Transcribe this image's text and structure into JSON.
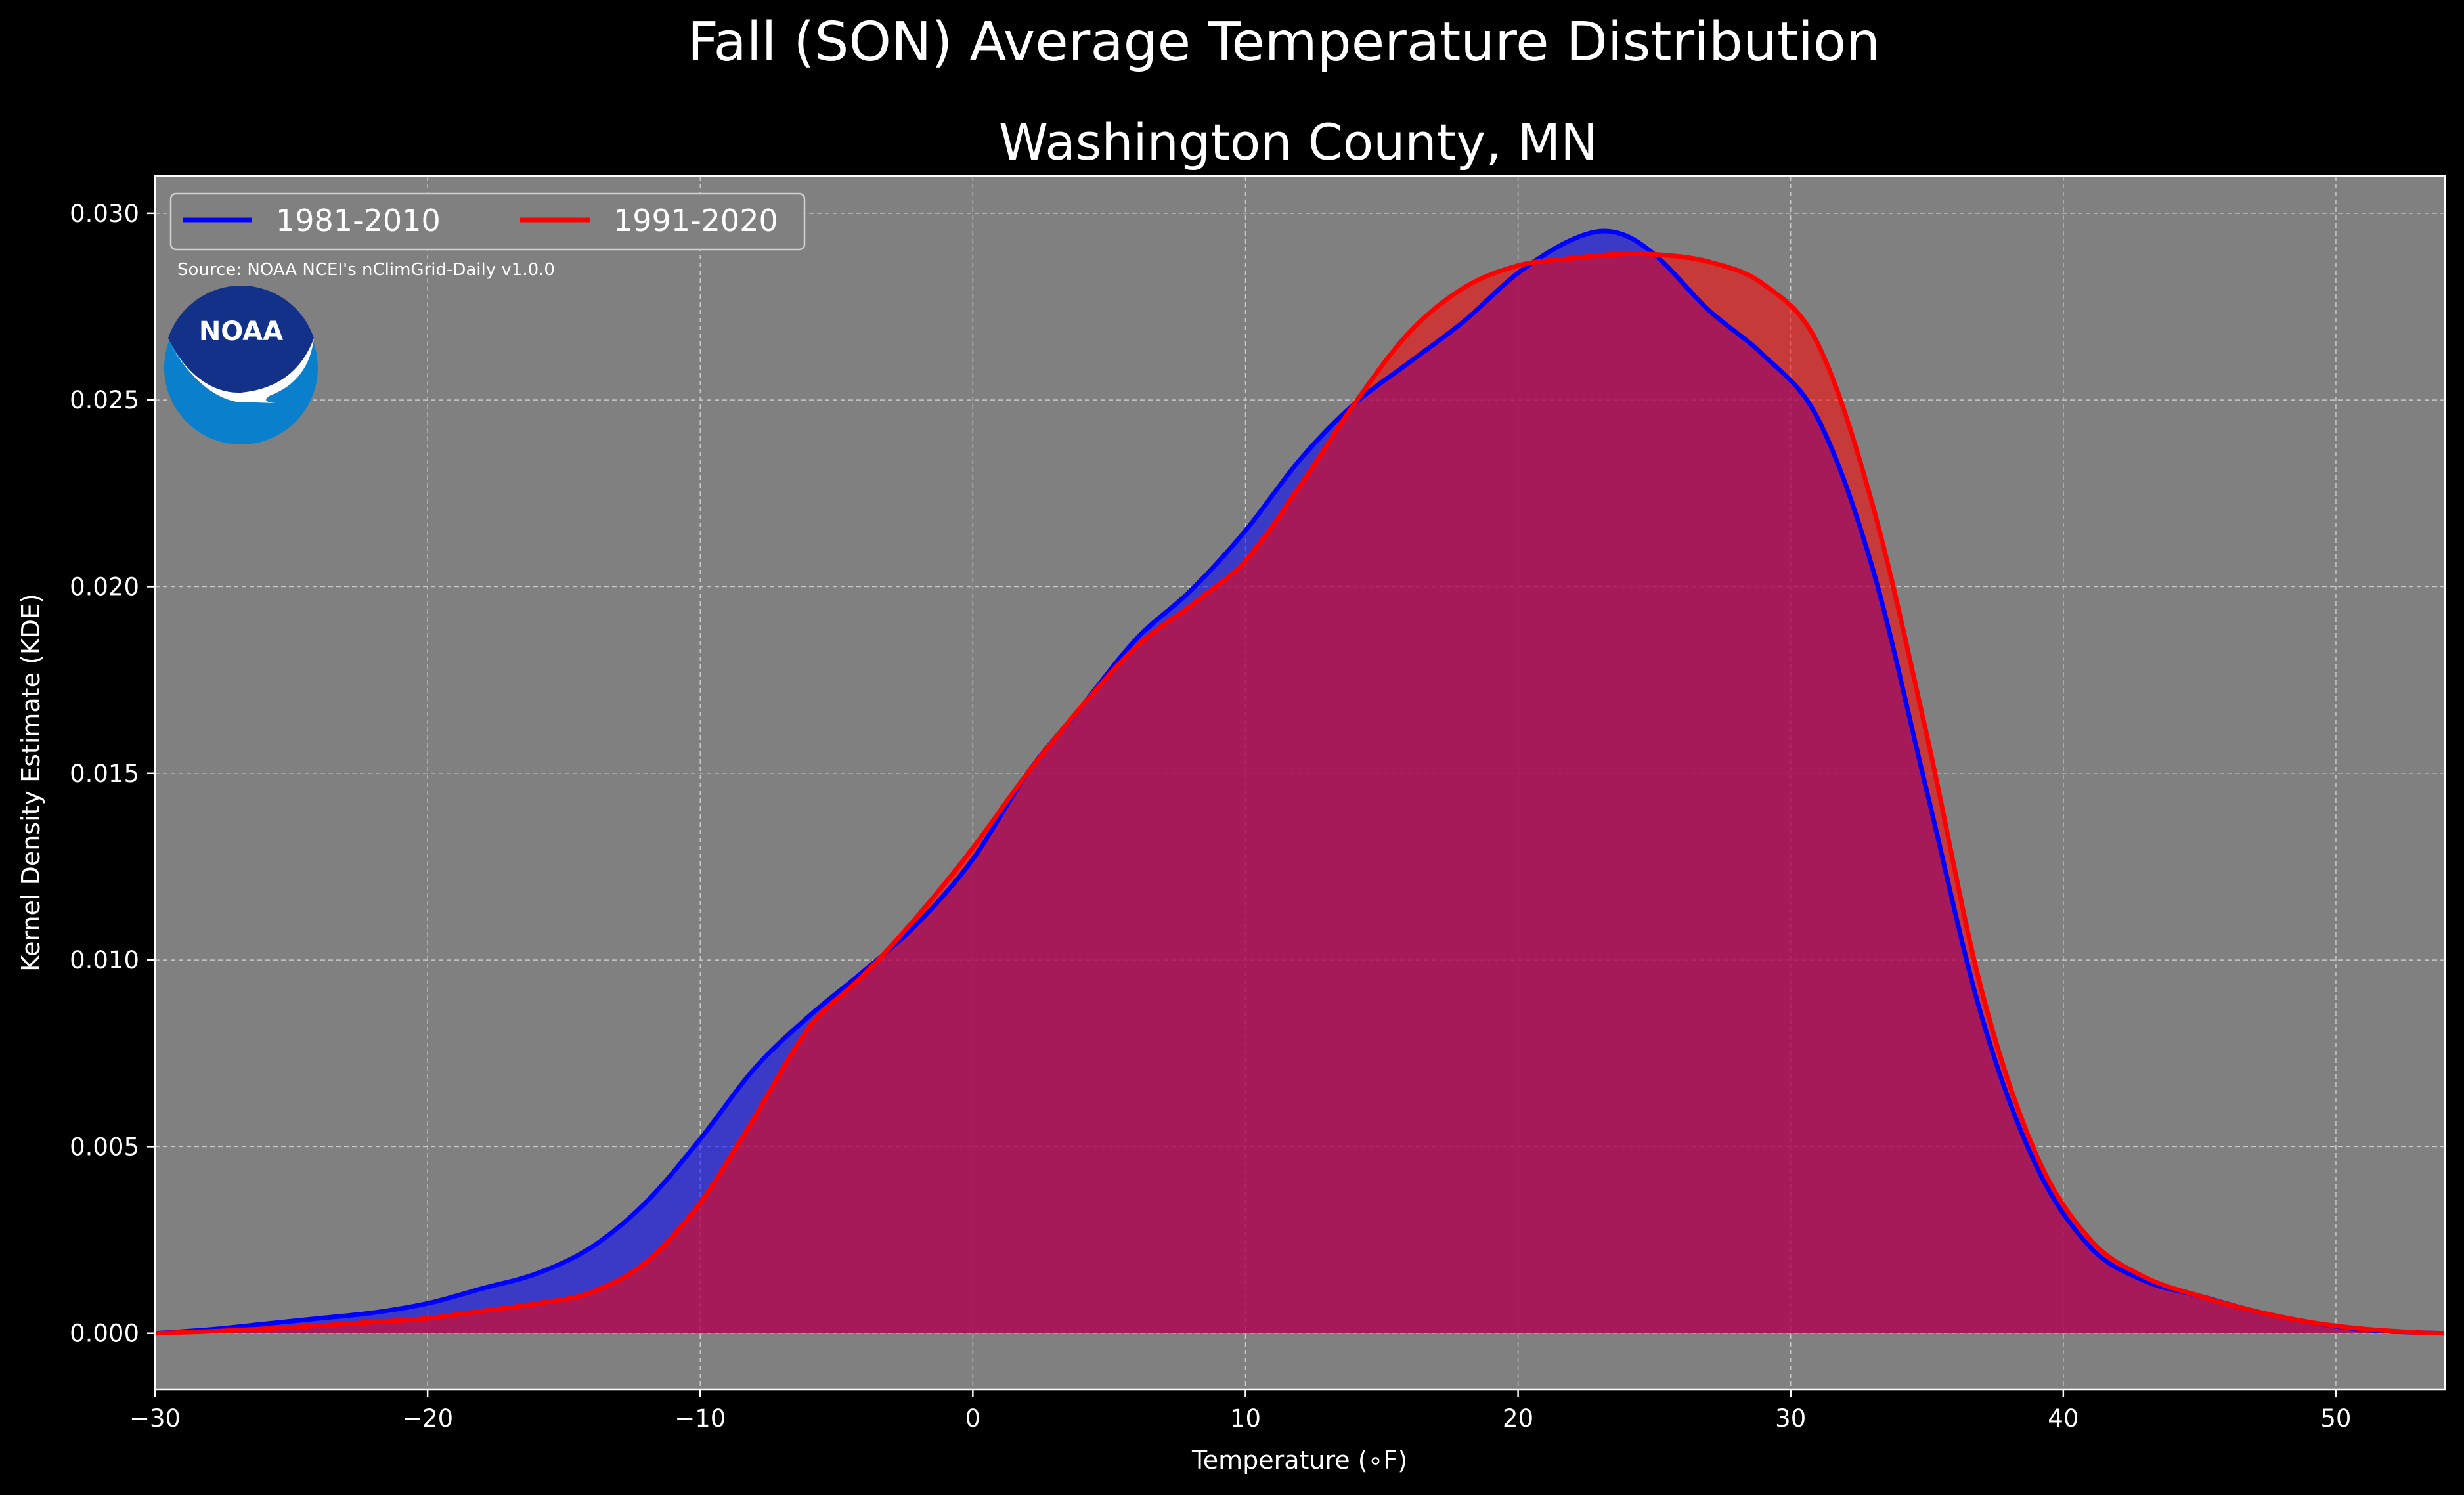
{
  "chart_data": {
    "type": "area",
    "suptitle": "Fall (SON) Average Temperature Distribution",
    "title": "Washington County, MN",
    "xlabel": "Temperature (∘F)",
    "ylabel": "Kernel Density Estimate (KDE)",
    "xlim": [
      -30,
      54
    ],
    "ylim": [
      -0.0015,
      0.031
    ],
    "xticks": [
      -30,
      -20,
      -10,
      0,
      10,
      20,
      30,
      40,
      50
    ],
    "xtick_labels": [
      "−30",
      "−20",
      "−10",
      "0",
      "10",
      "20",
      "30",
      "40",
      "50"
    ],
    "yticks": [
      0.0,
      0.005,
      0.01,
      0.015,
      0.02,
      0.025,
      0.03
    ],
    "ytick_labels": [
      "0.000",
      "0.005",
      "0.010",
      "0.015",
      "0.020",
      "0.025",
      "0.030"
    ],
    "grid": true,
    "legend_position": "top-left",
    "annotation": "Source: NOAA NCEI's nClimGrid-Daily v1.0.0",
    "logo_text": "NOAA",
    "colors": {
      "background": "#000000",
      "plot_background": "#808080",
      "series_1": "#0000ff",
      "series_2": "#ff0000",
      "overlap_fill": "#9e1f5c"
    },
    "series": [
      {
        "name": "1981-2010",
        "x": [
          -30,
          -28,
          -26,
          -24,
          -22,
          -20,
          -18,
          -16,
          -14,
          -12,
          -10,
          -8,
          -6,
          -4,
          -2,
          0,
          2,
          4,
          6,
          8,
          10,
          12,
          14,
          16,
          18,
          20,
          22,
          23.5,
          25,
          27,
          29,
          31,
          33,
          35,
          37,
          39,
          41,
          43,
          45,
          47,
          49,
          51,
          53,
          54
        ],
        "y": [
          0.0,
          0.0001,
          0.00025,
          0.0004,
          0.00055,
          0.0008,
          0.0012,
          0.0016,
          0.0023,
          0.0035,
          0.0052,
          0.0071,
          0.0085,
          0.0097,
          0.011,
          0.0127,
          0.015,
          0.0168,
          0.0186,
          0.0199,
          0.0215,
          0.0234,
          0.0249,
          0.026,
          0.0271,
          0.0284,
          0.0293,
          0.0295,
          0.0289,
          0.0274,
          0.0262,
          0.0245,
          0.0205,
          0.0145,
          0.0085,
          0.0045,
          0.0023,
          0.0014,
          0.001,
          0.0006,
          0.0003,
          0.0001,
          2e-05,
          0.0
        ],
        "color": "#0000ff"
      },
      {
        "name": "1991-2020",
        "x": [
          -30,
          -28,
          -26,
          -24,
          -22,
          -20,
          -18,
          -16,
          -14,
          -12,
          -10,
          -8,
          -6,
          -4,
          -2,
          0,
          2,
          4,
          6,
          8,
          10,
          12,
          14,
          16,
          18,
          20,
          22,
          23.5,
          25,
          27,
          29,
          31,
          33,
          35,
          37,
          39,
          41,
          43,
          45,
          47,
          49,
          51,
          53,
          54
        ],
        "y": [
          0.0,
          5e-05,
          0.00012,
          0.0002,
          0.0003,
          0.0004,
          0.0006,
          0.0008,
          0.0011,
          0.0019,
          0.0035,
          0.0058,
          0.0082,
          0.0096,
          0.0112,
          0.013,
          0.015,
          0.0168,
          0.0184,
          0.0195,
          0.0207,
          0.0227,
          0.0249,
          0.0268,
          0.028,
          0.0286,
          0.0288,
          0.0289,
          0.0289,
          0.0287,
          0.0281,
          0.0265,
          0.0222,
          0.016,
          0.0092,
          0.0048,
          0.0025,
          0.0015,
          0.001,
          0.0006,
          0.0003,
          0.00012,
          2e-05,
          0.0
        ],
        "color": "#ff0000"
      }
    ]
  }
}
